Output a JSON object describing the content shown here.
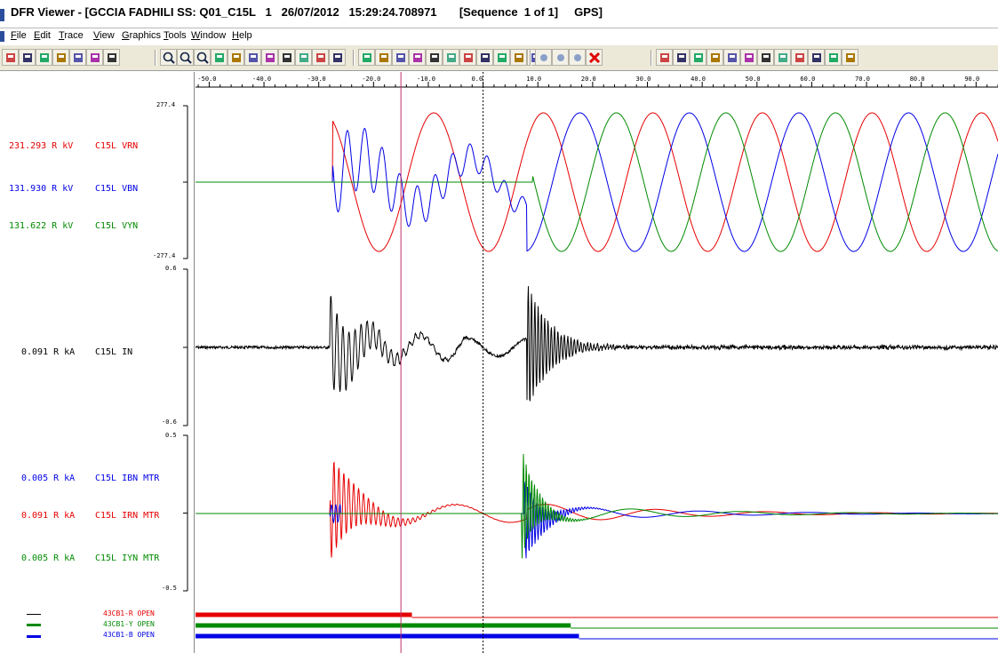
{
  "window": {
    "title": "DFR Viewer - [GCCIA FADHILI SS: Q01_C15L   1   26/07/2012   15:29:24.708971       [Sequence  1 of 1]     GPS]"
  },
  "menu": [
    "File",
    "Edit",
    "Trace",
    "View",
    "Graphics",
    "Tools",
    "Window",
    "Help"
  ],
  "toolbar": {
    "groups": [
      [
        "open-icon",
        "print-icon",
        "save-icon",
        "properties-icon",
        "bookmark-icon",
        "undo-icon",
        "redo-icon"
      ],
      [
        "zoom-in-icon",
        "zoom-out-icon",
        "zoom-fit-icon",
        "pan-horizontal-icon",
        "cursor-mode-icon",
        "measure-icon",
        "phasor-icon",
        "harmonics-icon",
        "symmetrical-icon",
        "scale-icon",
        "layout-icon"
      ],
      [
        "export-1-icon",
        "export-2-icon",
        "export-3-icon",
        "export-4-icon",
        "export-5-icon",
        "disk-1-icon",
        "disk-2-icon",
        "disk-3-icon",
        "disk-4-icon",
        "disk-5-icon",
        "disk-6-icon"
      ],
      [
        "nav-left-icon",
        "nav-right-icon",
        "nav-stop-icon",
        "close-red-icon"
      ],
      [
        "report-1-icon",
        "report-2-icon",
        "calc-1-icon",
        "calc-2-icon",
        "calc-3-icon",
        "monitor-1-icon",
        "monitor-2-icon",
        "grid-1-icon",
        "grid-2-icon",
        "step-icon",
        "star-icon",
        "wave-icon"
      ]
    ]
  },
  "colors": {
    "red": "#e60000",
    "blue": "#0000e6",
    "green": "#008a00",
    "black": "#000000",
    "cursor": "#c0306a"
  },
  "time_axis": {
    "ticks": [
      "-50.0",
      "-40.0",
      "-30.0",
      "-20.0",
      "-10.0",
      "0.0",
      "10.0",
      "20.0",
      "30.0",
      "40.0",
      "50.0",
      "60.0",
      "70.0",
      "80.0",
      "90.0"
    ],
    "solid_cursor": -15.0,
    "dashed_cursor": 0.0
  },
  "voltage_panel": {
    "scale_top": "277.4",
    "scale_bottom": "-277.4",
    "channels": [
      {
        "value": "231.293 R kV",
        "name": "C15L VRN",
        "color": "red"
      },
      {
        "value": "131.930 R kV",
        "name": "C15L VBN",
        "color": "blue"
      },
      {
        "value": "131.622 R kV",
        "name": "C15L VYN",
        "color": "green"
      }
    ]
  },
  "neutral_panel": {
    "scale_top": "0.6",
    "scale_bottom": "-0.6",
    "channels": [
      {
        "value": "0.091 R kA",
        "name": "C15L IN",
        "color": "black"
      }
    ]
  },
  "current_panel": {
    "scale_top": "0.5",
    "scale_bottom": "-0.5",
    "channels": [
      {
        "value": "0.005 R kA",
        "name": "C15L IBN MTR",
        "color": "blue"
      },
      {
        "value": "0.091 R kA",
        "name": "C15L IRN MTR",
        "color": "red"
      },
      {
        "value": "0.005 R kA",
        "name": "C15L IYN MTR",
        "color": "green"
      }
    ]
  },
  "digital_channels": [
    {
      "name": "43CB1-R OPEN",
      "color": "red",
      "swatch": "black",
      "transition_ms": -13.0
    },
    {
      "name": "43CB1-Y OPEN",
      "color": "green",
      "swatch": "green",
      "transition_ms": 16.0
    },
    {
      "name": "43CB1-B OPEN",
      "color": "blue",
      "swatch": "blue",
      "transition_ms": 17.5
    }
  ]
}
